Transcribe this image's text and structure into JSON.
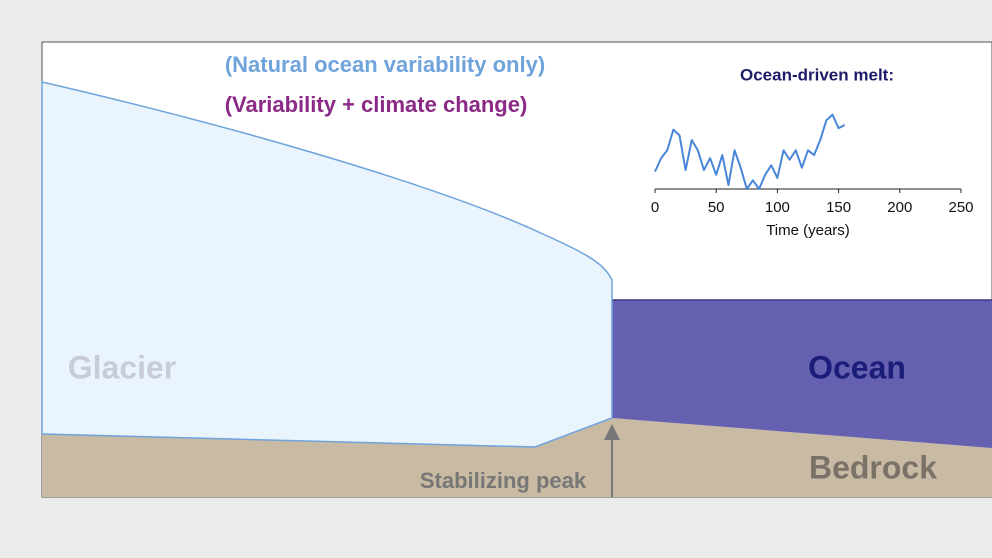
{
  "labels": {
    "natural": "(Natural ocean variability only)",
    "climate": "(Variability + climate change)",
    "glacier": "Glacier",
    "ocean": "Ocean",
    "bedrock": "Bedrock",
    "peak": "Stabilizing peak"
  },
  "chart_data": {
    "type": "line",
    "title": "Ocean-driven melt:",
    "x_label": "Time (years)",
    "x": [
      0,
      5,
      10,
      15,
      20,
      25,
      30,
      35,
      40,
      45,
      50,
      55,
      60,
      65,
      70,
      75,
      80,
      85,
      90,
      95,
      100,
      105,
      110,
      115,
      120,
      125,
      130,
      135,
      140,
      145,
      150,
      155
    ],
    "series": [
      {
        "color": "#4a86d8",
        "values": [
          0.22,
          0.39,
          0.49,
          0.75,
          0.68,
          0.24,
          0.62,
          0.49,
          0.24,
          0.39,
          0.18,
          0.43,
          0.05,
          0.49,
          0.27,
          0,
          0.11,
          0,
          0.18,
          0.3,
          0.14,
          0.49,
          0.37,
          0.49,
          0.27,
          0.49,
          0.43,
          0.62,
          0.87,
          0.94,
          0.77,
          0.81
        ]
      }
    ],
    "xlim": [
      0,
      250
    ],
    "xticks": [
      0,
      50,
      100,
      150,
      200,
      250
    ],
    "ylim": [
      0,
      1
    ]
  }
}
